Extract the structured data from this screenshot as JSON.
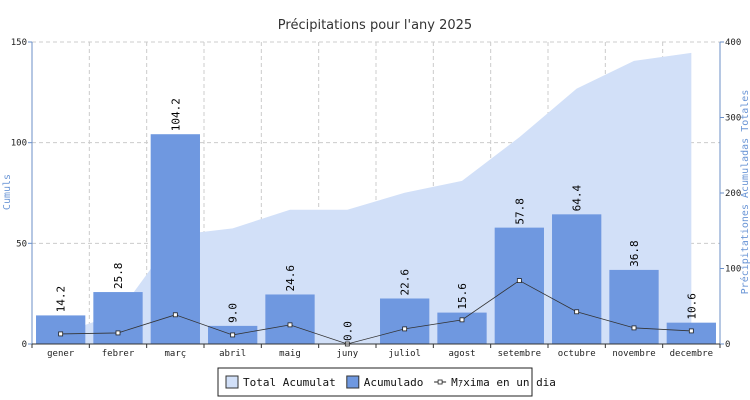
{
  "chart_data": {
    "type": "bar",
    "title": "Précipitations pour l'any 2025",
    "categories": [
      "gener",
      "febrer",
      "març",
      "abril",
      "maig",
      "juny",
      "juliol",
      "agost",
      "setembre",
      "octubre",
      "novembre",
      "decembre"
    ],
    "ylabel_left": "Cumuls",
    "ylabel_right": "Précipitationes Acumuladas Totales",
    "ylim_left": [
      0,
      150
    ],
    "yticks_left": [
      0,
      50,
      100,
      150
    ],
    "ylim_right": [
      0,
      400
    ],
    "yticks_right": [
      0,
      100,
      200,
      300,
      400
    ],
    "grid": true,
    "legend_position": "bottom-center",
    "series": [
      {
        "name": "Total Acumulat",
        "kind": "area",
        "axis": "right",
        "color": "#d2e0f8",
        "values": [
          14.2,
          40.0,
          144.2,
          153.2,
          177.8,
          177.8,
          200.4,
          216.0,
          273.8,
          338.2,
          375.0,
          385.6
        ]
      },
      {
        "name": "Acumulado",
        "kind": "bar",
        "axis": "left",
        "color": "#6f98e0",
        "values": [
          14.2,
          25.8,
          104.2,
          9.0,
          24.6,
          0.0,
          22.6,
          15.6,
          57.8,
          64.4,
          36.8,
          10.6
        ],
        "labels": [
          "14.2",
          "25.8",
          "104.2",
          "9.0",
          "24.6",
          "0.0",
          "22.6",
          "15.6",
          "57.8",
          "64.4",
          "36.8",
          "10.6"
        ]
      },
      {
        "name": "Mｧxima en un dia",
        "kind": "line",
        "axis": "left",
        "color": "#333333",
        "values": [
          5.0,
          5.5,
          14.5,
          4.5,
          9.5,
          0.0,
          7.5,
          12.0,
          31.5,
          16.0,
          8.0,
          6.5
        ]
      }
    ]
  }
}
